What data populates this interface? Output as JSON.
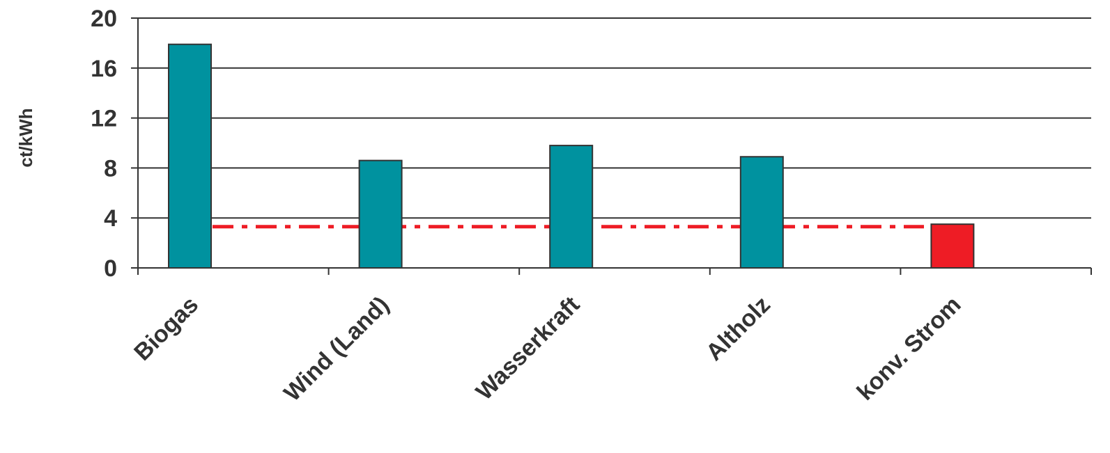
{
  "chart_data": {
    "type": "bar",
    "title": "",
    "xlabel": "",
    "ylabel": "ct/kWh",
    "categories": [
      "Biogas",
      "Wind (Land)",
      "Wasserkraft",
      "Altholz",
      "konv. Strom"
    ],
    "values": [
      17.9,
      8.6,
      9.8,
      8.9,
      3.5
    ],
    "bar_colors": [
      "#00929f",
      "#00929f",
      "#00929f",
      "#00929f",
      "#ee1c25"
    ],
    "yticks": [
      "0",
      "4",
      "8",
      "12",
      "16",
      "20"
    ],
    "ylim": [
      0,
      20
    ],
    "grid": true,
    "reference_line": {
      "value": 3.3,
      "color": "#ee1c25",
      "style": "dash-dot"
    }
  }
}
